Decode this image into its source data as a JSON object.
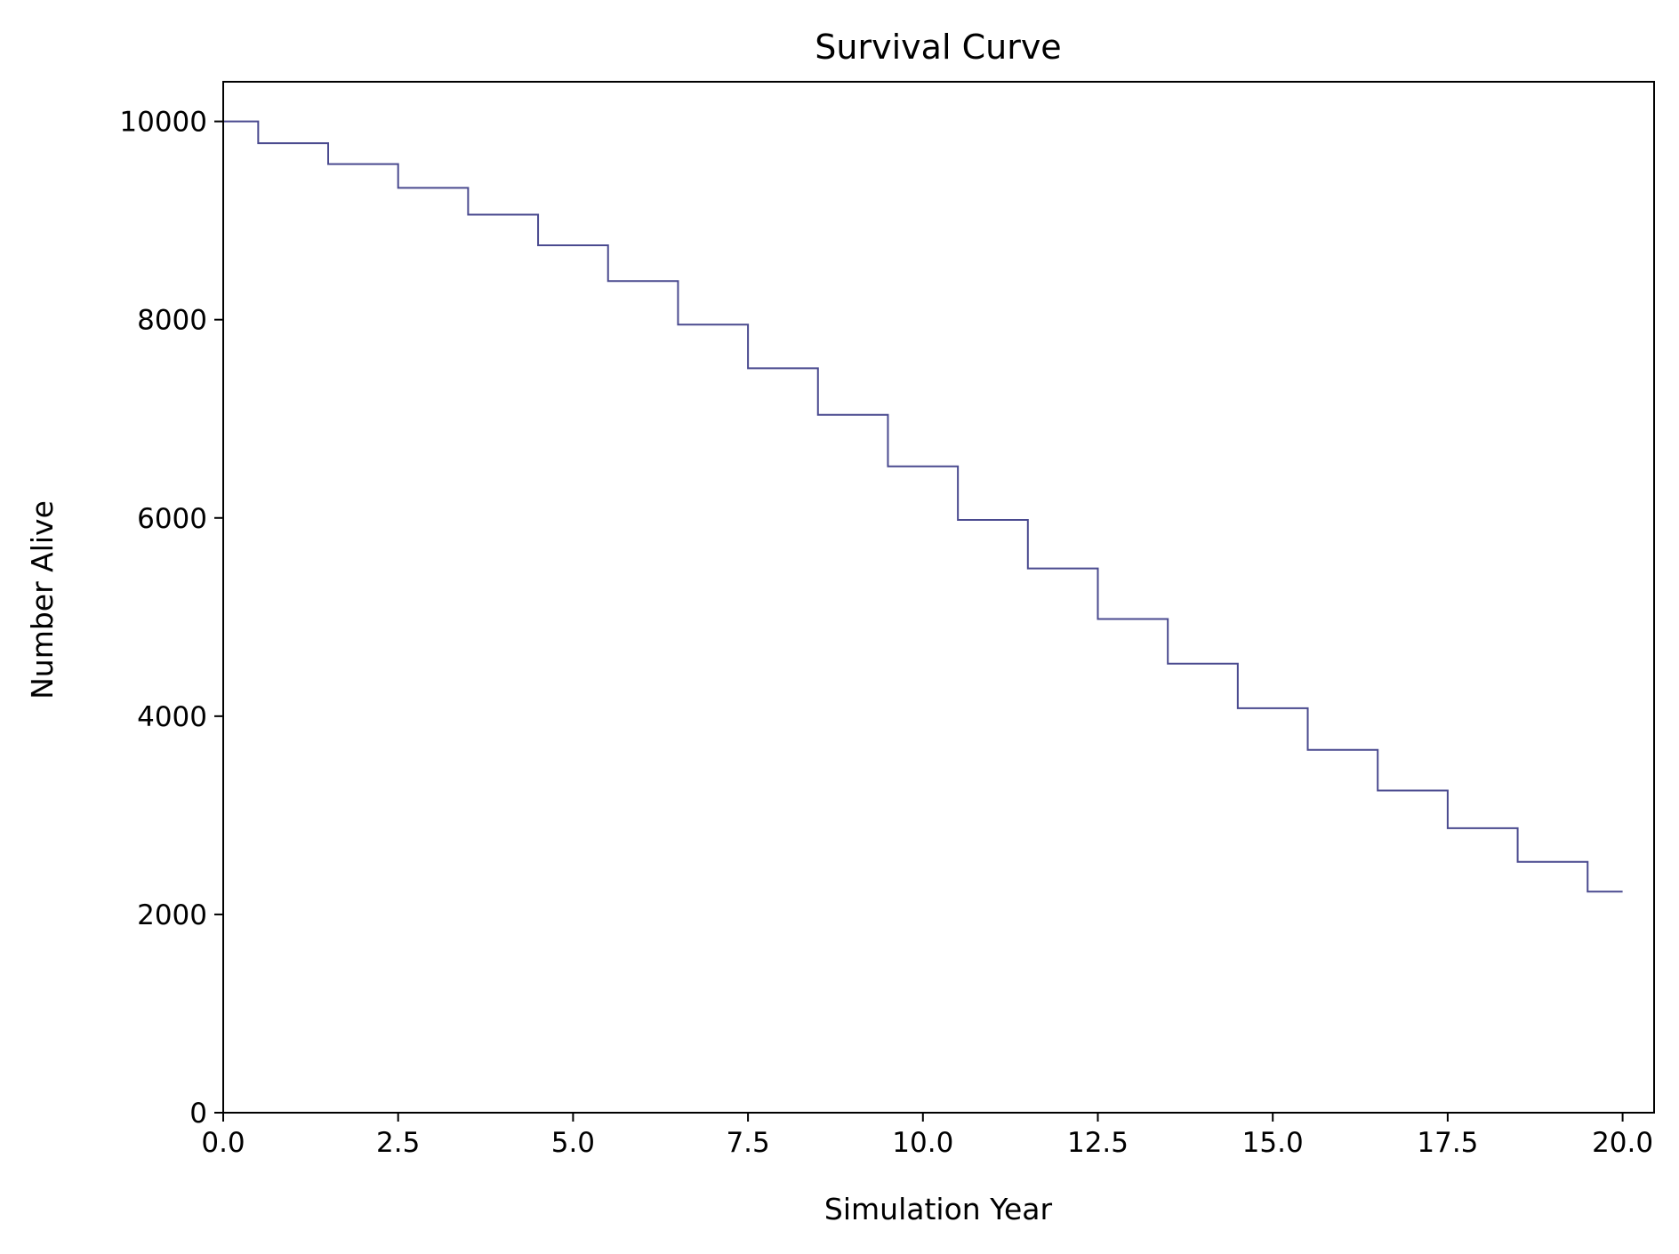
{
  "chart_data": {
    "type": "line",
    "step": "mid",
    "title": "Survival Curve",
    "xlabel": "Simulation Year",
    "ylabel": "Number Alive",
    "xlim": [
      0,
      20.45
    ],
    "ylim": [
      0,
      10400
    ],
    "x_ticks": [
      0.0,
      2.5,
      5.0,
      7.5,
      10.0,
      12.5,
      15.0,
      17.5,
      20.0
    ],
    "x_tick_labels": [
      "0.0",
      "2.5",
      "5.0",
      "7.5",
      "10.0",
      "12.5",
      "15.0",
      "17.5",
      "20.0"
    ],
    "y_ticks": [
      0,
      2000,
      4000,
      6000,
      8000,
      10000
    ],
    "y_tick_labels": [
      "0",
      "2000",
      "4000",
      "6000",
      "8000",
      "10000"
    ],
    "grid": false,
    "legend": "none",
    "line_color": "#4a4a8f",
    "series": [
      {
        "x": [
          0,
          1,
          2,
          3,
          4,
          5,
          6,
          7,
          8,
          9,
          10,
          11,
          12,
          13,
          14,
          15,
          16,
          17,
          18,
          19,
          20
        ],
        "values": [
          10000,
          9780,
          9570,
          9330,
          9060,
          8750,
          8390,
          7950,
          7510,
          7040,
          6520,
          5980,
          5490,
          4980,
          4530,
          4080,
          3660,
          3250,
          2870,
          2530,
          2230
        ]
      }
    ]
  }
}
